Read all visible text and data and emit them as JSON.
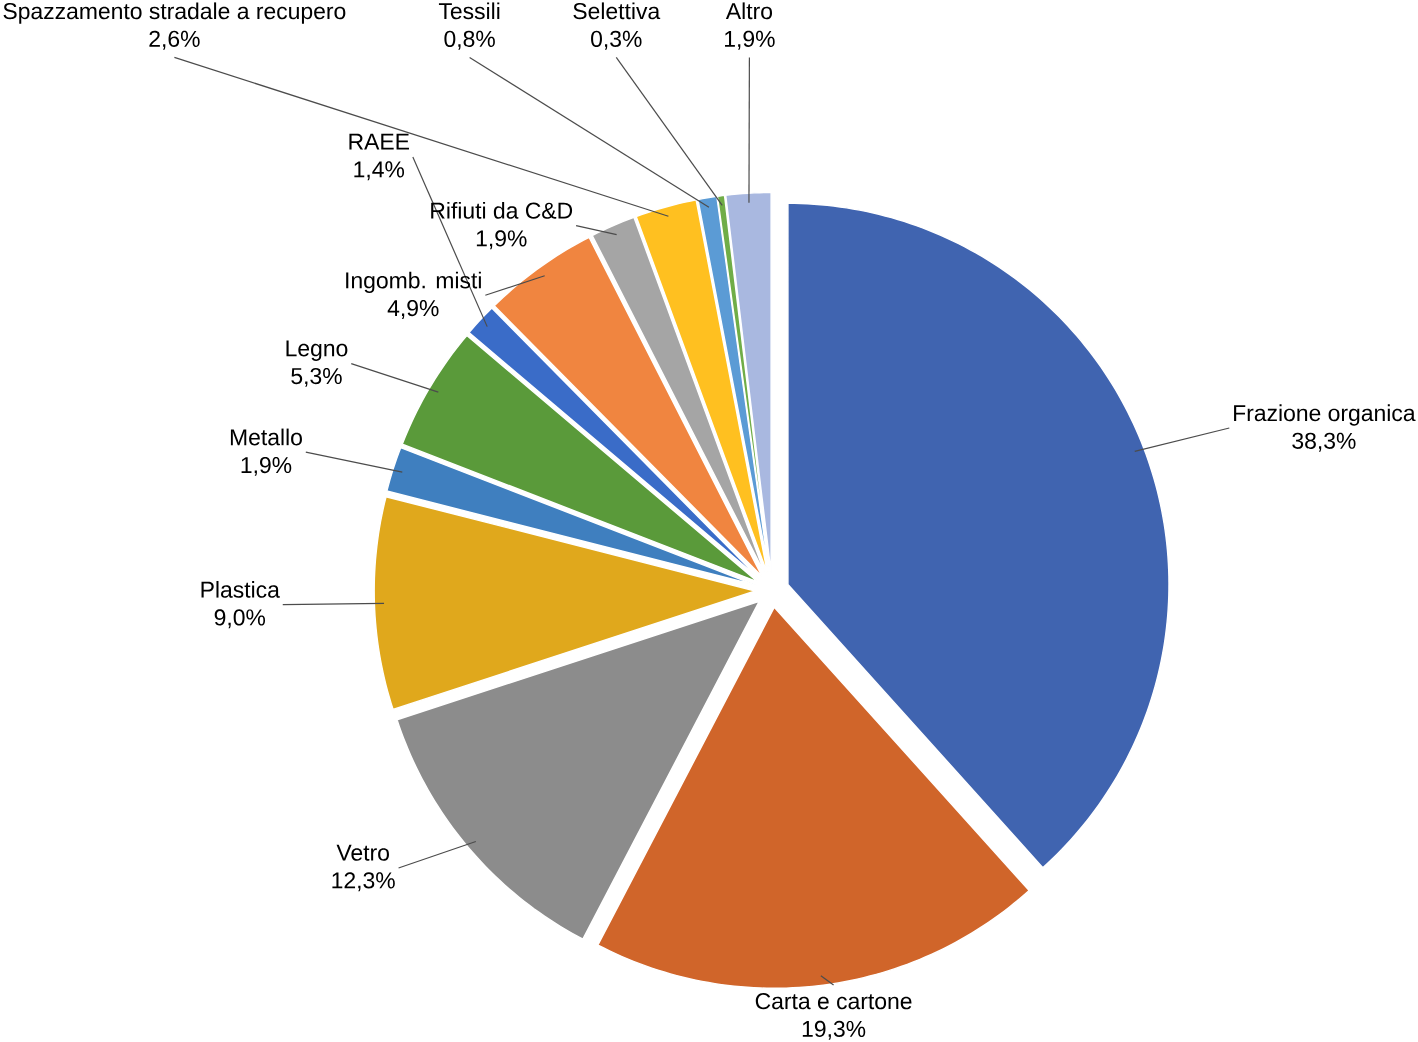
{
  "chart_data": {
    "type": "pie",
    "categories": [
      "Frazione organica",
      "Carta e cartone",
      "Vetro",
      "Plastica",
      "Metallo",
      "Legno",
      "RAEE",
      "Ingomb. misti",
      "Rifiuti da C&D",
      "Spazzamento stradale a recupero",
      "Tessili",
      "Selettiva",
      "Altro"
    ],
    "values": [
      38.3,
      19.3,
      12.3,
      9.0,
      1.9,
      5.3,
      1.4,
      4.9,
      1.9,
      2.6,
      0.8,
      0.3,
      1.9
    ],
    "value_labels": [
      "38,3%",
      "19,3%",
      "12,3%",
      "9,0%",
      "1,9%",
      "5,3%",
      "1,4%",
      "4,9%",
      "1,9%",
      "2,6%",
      "0,8%",
      "0,3%",
      "1,9%"
    ],
    "colors": [
      "#4064b0",
      "#d0652a",
      "#8c8c8c",
      "#e0a81c",
      "#3f7fbf",
      "#5a9a3a",
      "#3a6cc8",
      "#f08540",
      "#a5a5a5",
      "#ffc020",
      "#5b9bd5",
      "#70ad47",
      "#a9b8e0"
    ]
  }
}
